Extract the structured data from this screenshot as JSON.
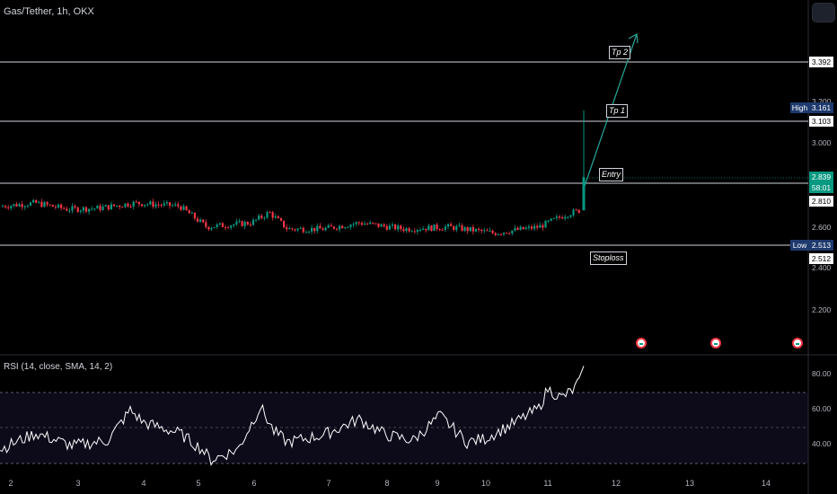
{
  "header": {
    "symbol": "Gas/Tether, 1h, OKX"
  },
  "rsi": {
    "title": "RSI (14, close, SMA, 14, 2)",
    "axis_labels": [
      "80.00",
      "60.00",
      "40.00"
    ]
  },
  "price_axis": {
    "labels": [
      "3.200",
      "3.000",
      "2.600",
      "2.400",
      "2.200"
    ]
  },
  "time_axis": {
    "labels": [
      "2",
      "3",
      "4",
      "5",
      "6",
      "7",
      "8",
      "9",
      "10",
      "11",
      "12",
      "13",
      "14"
    ]
  },
  "levels": {
    "tp2": {
      "label": "Tp 2",
      "price": "3.392"
    },
    "tp1": {
      "label": "Tp 1",
      "price": "3.103"
    },
    "entry": {
      "label": "Entry",
      "price": "2.810"
    },
    "stoploss": {
      "label": "Stoploss",
      "price": "2.512"
    }
  },
  "current": {
    "price": "2.839",
    "countdown": "58:01"
  },
  "high": {
    "label": "High",
    "value": "3.161"
  },
  "low": {
    "label": "Low",
    "value": "2.513"
  },
  "colors": {
    "up": "#089981",
    "down": "#f23645",
    "line": "#d1d4dc",
    "arrow": "#26a69a",
    "rsi_band": "#0d0b1a"
  },
  "icons": [
    "event-flag-icon",
    "event-flag-icon",
    "event-flag-icon"
  ]
}
